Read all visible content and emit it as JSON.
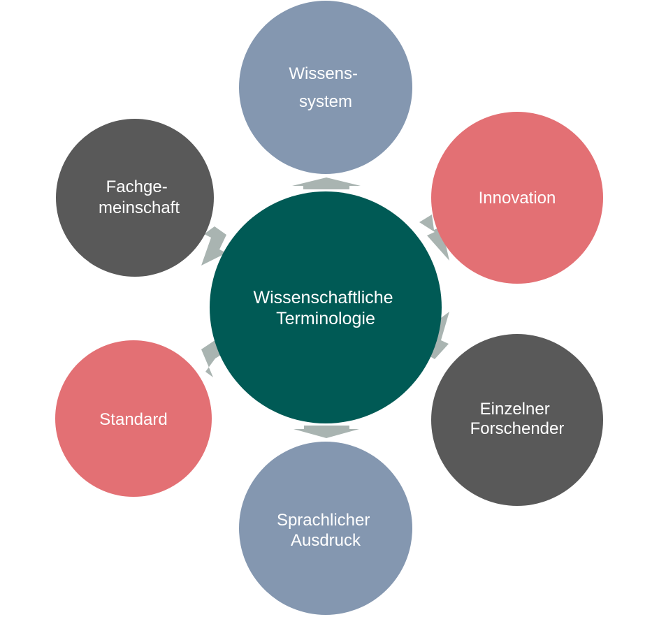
{
  "center": {
    "line1": "Wissenschaftliche",
    "line2": "Terminologie",
    "color": "#005a55"
  },
  "nodes": {
    "wissenssystem": {
      "line1": "Wissens-",
      "line2": "system",
      "color": "#8497b0"
    },
    "innovation": {
      "line1": "Innovation",
      "color": "#e37074"
    },
    "einzelner_forschender": {
      "line1": "Einzelner",
      "line2": "Forschender",
      "color": "#595959"
    },
    "sprachlicher_ausdruck": {
      "line1": "Sprachlicher",
      "line2": "Ausdruck",
      "color": "#8497b0"
    },
    "standard": {
      "line1": "Standard",
      "color": "#e37074"
    },
    "fachgemeinschaft": {
      "line1": "Fachge-",
      "line2": "meinschaft",
      "color": "#595959"
    }
  },
  "arrow_color": "#a9b4b1",
  "text_color": "#ffffff"
}
